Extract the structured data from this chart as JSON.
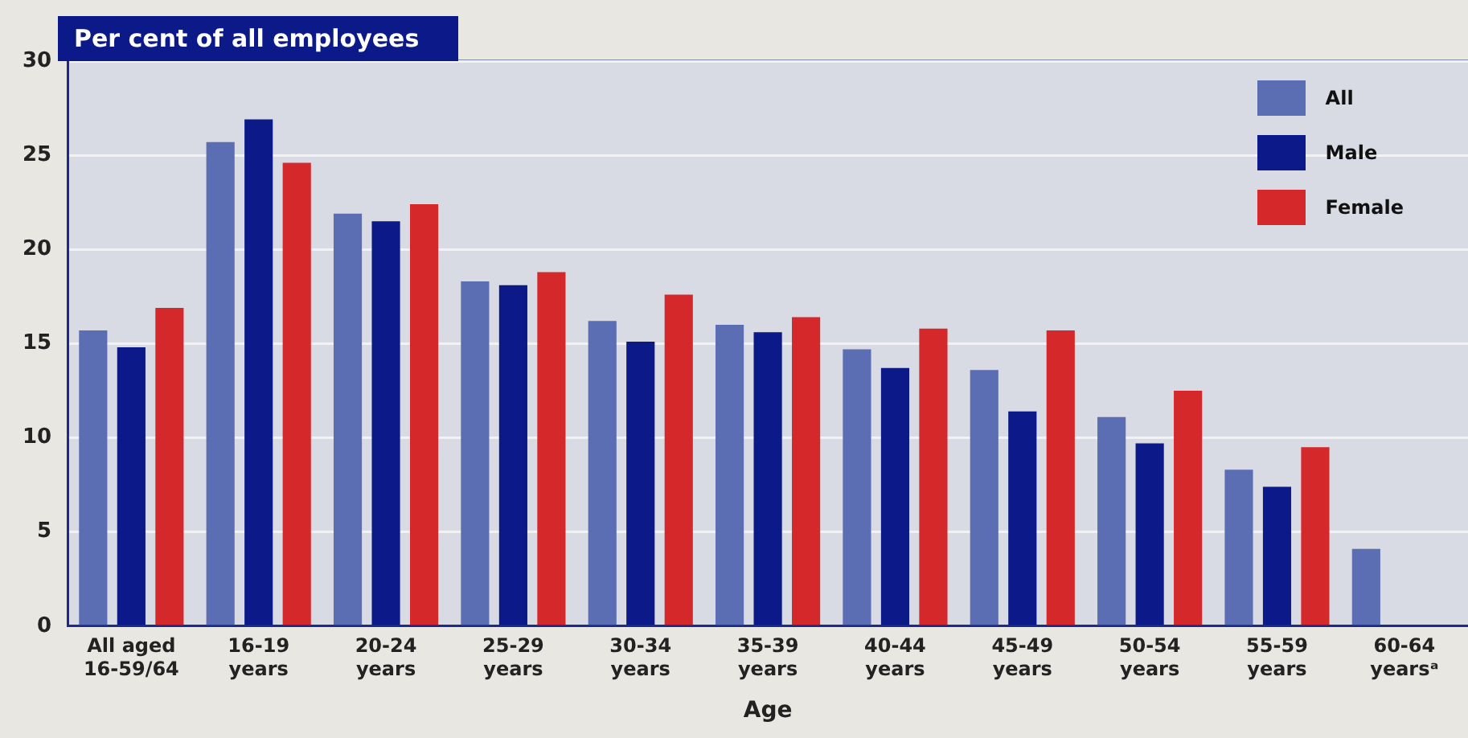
{
  "chart_data": {
    "type": "bar",
    "title": "Per cent of all employees",
    "xlabel": "Age",
    "categories": [
      "All aged\n16-59/64",
      "16-19\nyears",
      "20-24\nyears",
      "25-29\nyears",
      "30-34\nyears",
      "35-39\nyears",
      "40-44\nyears",
      "45-49\nyears",
      "50-54\nyears",
      "55-59\nyears",
      "60-64\nyearsᵃ"
    ],
    "series": [
      {
        "name": "All",
        "color": "#5b6db3",
        "values": [
          15.7,
          25.7,
          21.9,
          18.3,
          16.2,
          16.0,
          14.7,
          13.6,
          11.1,
          8.3,
          4.1
        ]
      },
      {
        "name": "Male",
        "color": "#0b1a88",
        "values": [
          14.8,
          26.9,
          21.5,
          18.1,
          15.1,
          15.6,
          13.7,
          11.4,
          9.7,
          7.4,
          null
        ]
      },
      {
        "name": "Female",
        "color": "#d4282a",
        "values": [
          16.9,
          24.6,
          22.4,
          18.8,
          17.6,
          16.4,
          15.8,
          15.7,
          12.5,
          9.5,
          null
        ]
      }
    ],
    "ylim": [
      0,
      30
    ],
    "yticks": [
      0,
      5,
      10,
      15,
      20,
      25,
      30
    ],
    "grid": "y",
    "legend": "top right"
  }
}
